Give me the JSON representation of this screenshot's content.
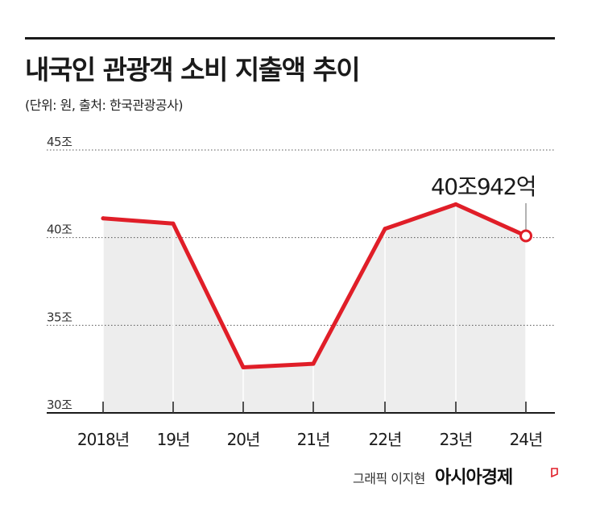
{
  "header": {
    "title": "내국인 관광객 소비 지출액 추이",
    "subtitle": "(단위: 원, 출처: 한국관광공사)"
  },
  "footer": {
    "credit": "그래픽 이지현",
    "logo": "아시아경제"
  },
  "colors": {
    "line": "#e01e28",
    "area": "#ededed",
    "grid": "#555555",
    "text": "#1a1a1a"
  },
  "chart_data": {
    "type": "line",
    "categories": [
      "2018년",
      "19년",
      "20년",
      "21년",
      "22년",
      "23년",
      "24년"
    ],
    "series": [
      {
        "values": [
          41.1,
          40.8,
          32.6,
          32.8,
          40.5,
          41.9,
          40.1
        ]
      }
    ],
    "ylim": [
      30,
      45
    ],
    "yticks": [
      30,
      35,
      40,
      45
    ],
    "ytick_labels": [
      "30조",
      "35조",
      "40조",
      "45조"
    ],
    "grid": true,
    "area_fill": true,
    "annotation": {
      "category_index": 6,
      "text": "40조942억"
    }
  }
}
